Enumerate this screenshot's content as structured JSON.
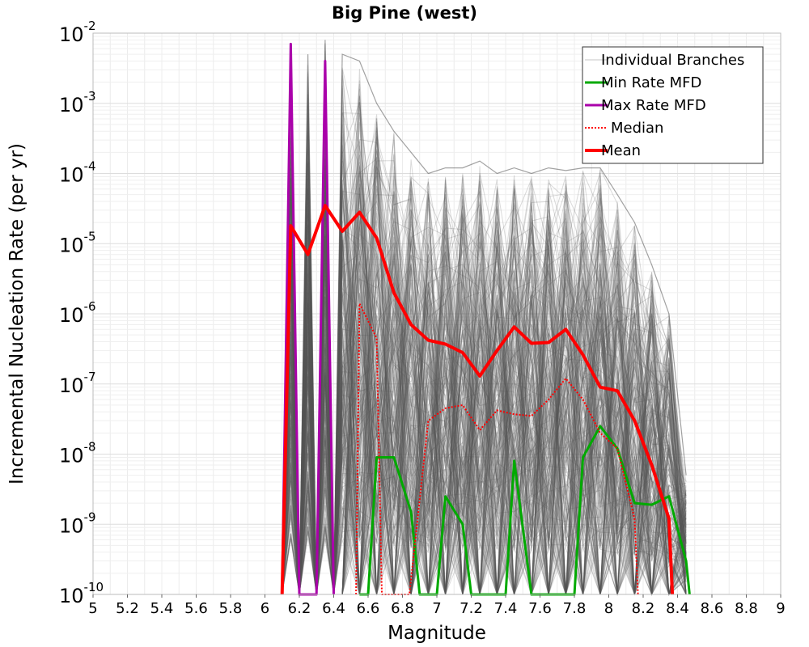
{
  "chart_data": {
    "type": "line",
    "title": "Big Pine (west)",
    "xlabel": "Magnitude",
    "ylabel": "Incremental Nucleation Rate (per yr)",
    "xlim": [
      5,
      9
    ],
    "ylim": [
      1e-10,
      0.01
    ],
    "yscale": "log",
    "grid": true,
    "legend_position": "top-right",
    "x_ticks": [
      "5",
      "5.2",
      "5.4",
      "5.6",
      "5.8",
      "6",
      "6.2",
      "6.4",
      "6.6",
      "6.8",
      "7",
      "7.2",
      "7.4",
      "7.6",
      "7.8",
      "8",
      "8.2",
      "8.4",
      "8.6",
      "8.8",
      "9"
    ],
    "y_ticks": [
      {
        "base": "10",
        "exp": "-10"
      },
      {
        "base": "10",
        "exp": "-9"
      },
      {
        "base": "10",
        "exp": "-8"
      },
      {
        "base": "10",
        "exp": "-7"
      },
      {
        "base": "10",
        "exp": "-6"
      },
      {
        "base": "10",
        "exp": "-5"
      },
      {
        "base": "10",
        "exp": "-4"
      },
      {
        "base": "10",
        "exp": "-3"
      },
      {
        "base": "10",
        "exp": "-2"
      }
    ],
    "series": [
      {
        "name": "Individual Branches",
        "style": "band",
        "color": "#555555",
        "x": [
          6.1,
          6.15,
          6.2,
          6.25,
          6.3,
          6.35,
          6.4,
          6.45,
          6.55,
          6.65,
          6.75,
          6.85,
          6.95,
          7.05,
          7.15,
          7.25,
          7.35,
          7.45,
          7.55,
          7.65,
          7.75,
          7.85,
          7.95,
          8.05,
          8.15,
          8.25,
          8.35,
          8.45
        ],
        "upper": [
          1e-10,
          0.005,
          1e-10,
          0.005,
          1e-10,
          0.008,
          1e-10,
          0.005,
          0.004,
          0.001,
          0.0004,
          0.0002,
          0.0001,
          0.00012,
          0.00012,
          0.00015,
          0.0001,
          0.00012,
          0.0001,
          0.00012,
          0.00011,
          0.00012,
          0.00012,
          5e-05,
          2e-05,
          5e-06,
          1e-06,
          5e-09
        ],
        "lower": [
          1e-10,
          1e-10,
          1e-10,
          1e-10,
          1e-10,
          1e-10,
          1e-10,
          1e-10,
          1e-10,
          1e-10,
          1e-10,
          1e-10,
          1e-10,
          1e-10,
          1e-10,
          1e-10,
          1e-10,
          1e-10,
          1e-10,
          1e-10,
          1e-10,
          1e-10,
          1e-10,
          1e-10,
          1e-10,
          1e-10,
          1e-10,
          1e-10
        ]
      },
      {
        "name": "Min Rate MFD",
        "style": "solid",
        "color": "#00aa00",
        "x": [
          6.55,
          6.6,
          6.65,
          6.75,
          6.85,
          6.9,
          7.0,
          7.05,
          7.15,
          7.2,
          7.35,
          7.4,
          7.45,
          7.55,
          7.6,
          7.75,
          7.8,
          7.85,
          7.95,
          8.05,
          8.15,
          8.25,
          8.35,
          8.45,
          8.47
        ],
        "y": [
          1e-10,
          1e-10,
          9e-09,
          9e-09,
          1.5e-09,
          1e-10,
          1e-10,
          2.5e-09,
          1e-09,
          1e-10,
          1e-10,
          1e-10,
          8e-09,
          1e-10,
          1e-10,
          1e-10,
          1e-10,
          9e-09,
          2.5e-08,
          1.2e-08,
          2e-09,
          1.9e-09,
          2.5e-09,
          3e-10,
          1e-10
        ]
      },
      {
        "name": "Max Rate MFD",
        "style": "solid",
        "color": "#aa00aa",
        "x": [
          6.1,
          6.15,
          6.2,
          6.3,
          6.35,
          6.4
        ],
        "y": [
          1e-10,
          0.007,
          1e-10,
          1e-10,
          0.004,
          1e-10
        ]
      },
      {
        "name": "Median",
        "style": "dotted",
        "color": "#ff0000",
        "x": [
          6.53,
          6.55,
          6.65,
          6.68,
          6.84,
          6.95,
          7.05,
          7.15,
          7.25,
          7.35,
          7.45,
          7.55,
          7.65,
          7.75,
          7.85,
          7.95,
          8.05,
          8.15,
          8.17
        ],
        "y": [
          1e-10,
          1.4e-06,
          4.5e-07,
          1e-10,
          1e-10,
          3e-08,
          4.5e-08,
          5e-08,
          2.2e-08,
          4.2e-08,
          3.7e-08,
          3.5e-08,
          6e-08,
          1.2e-07,
          6e-08,
          2e-08,
          1.2e-08,
          1.2e-09,
          1e-10
        ]
      },
      {
        "name": "Mean",
        "style": "solid",
        "color": "#ff0000",
        "x": [
          6.1,
          6.15,
          6.25,
          6.35,
          6.45,
          6.55,
          6.65,
          6.75,
          6.85,
          6.95,
          7.05,
          7.15,
          7.25,
          7.35,
          7.45,
          7.55,
          7.65,
          7.75,
          7.85,
          7.95,
          8.05,
          8.15,
          8.25,
          8.35,
          8.37
        ],
        "y": [
          1e-10,
          1.8e-05,
          7e-06,
          3.5e-05,
          1.5e-05,
          2.8e-05,
          1.2e-05,
          2e-06,
          7e-07,
          4.2e-07,
          3.7e-07,
          2.8e-07,
          1.3e-07,
          3e-07,
          6.5e-07,
          3.8e-07,
          3.9e-07,
          6e-07,
          2.6e-07,
          9e-08,
          8e-08,
          3e-08,
          7e-09,
          1.2e-09,
          1e-10
        ]
      }
    ]
  }
}
